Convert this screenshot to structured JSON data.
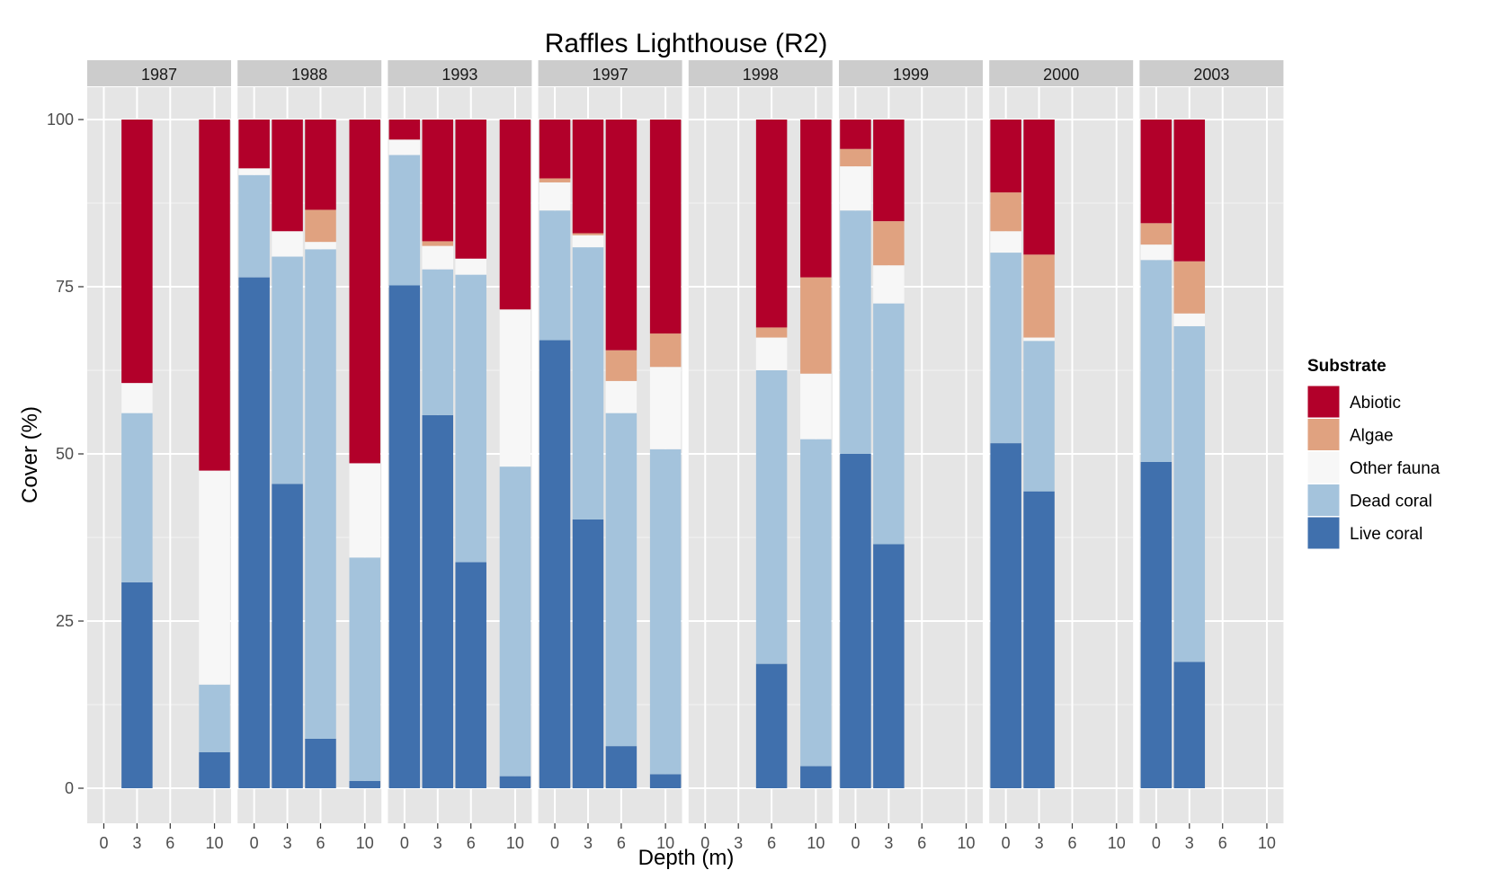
{
  "chart_data": {
    "type": "bar",
    "stacked": true,
    "faceted_by": "year",
    "title": "Raffles Lighthouse (R2)",
    "xlabel": "Depth (m)",
    "ylabel": "Cover (%)",
    "ylim": [
      0,
      100
    ],
    "y_ticks": [
      0,
      25,
      50,
      75,
      100
    ],
    "x_ticks": [
      0,
      3,
      6,
      10
    ],
    "x_range": [
      -1.5,
      11.5
    ],
    "grid": true,
    "legend": {
      "title": "Substrate",
      "placement": "right",
      "entries": [
        {
          "name": "Abiotic",
          "color": "#b2002a"
        },
        {
          "name": "Algae",
          "color": "#e0a280"
        },
        {
          "name": "Other fauna",
          "color": "#f7f7f7"
        },
        {
          "name": "Dead coral",
          "color": "#a4c3dc"
        },
        {
          "name": "Live coral",
          "color": "#4070ad"
        }
      ]
    },
    "stack_order": [
      "Live coral",
      "Dead coral",
      "Other fauna",
      "Algae",
      "Abiotic"
    ],
    "panels": [
      {
        "year": "1987",
        "bars": [
          {
            "depth": 3,
            "values": {
              "Live coral": 30.8,
              "Dead coral": 25.3,
              "Other fauna": 4.5,
              "Algae": 0,
              "Abiotic": 39.4
            }
          },
          {
            "depth": 10,
            "values": {
              "Live coral": 5.4,
              "Dead coral": 10.1,
              "Other fauna": 32.0,
              "Algae": 0,
              "Abiotic": 52.5
            }
          }
        ]
      },
      {
        "year": "1988",
        "bars": [
          {
            "depth": 0,
            "values": {
              "Live coral": 76.4,
              "Dead coral": 15.3,
              "Other fauna": 1.0,
              "Algae": 0,
              "Abiotic": 7.3
            }
          },
          {
            "depth": 3,
            "values": {
              "Live coral": 45.5,
              "Dead coral": 34.0,
              "Other fauna": 3.8,
              "Algae": 0,
              "Abiotic": 16.7
            }
          },
          {
            "depth": 6,
            "values": {
              "Live coral": 7.4,
              "Dead coral": 73.2,
              "Other fauna": 1.1,
              "Algae": 4.8,
              "Abiotic": 13.5
            }
          },
          {
            "depth": 10,
            "values": {
              "Live coral": 1.1,
              "Dead coral": 33.4,
              "Other fauna": 14.1,
              "Algae": 0,
              "Abiotic": 51.4
            }
          }
        ]
      },
      {
        "year": "1993",
        "bars": [
          {
            "depth": 0,
            "values": {
              "Live coral": 75.2,
              "Dead coral": 19.5,
              "Other fauna": 2.3,
              "Algae": 0,
              "Abiotic": 3.0
            }
          },
          {
            "depth": 3,
            "values": {
              "Live coral": 55.8,
              "Dead coral": 21.8,
              "Other fauna": 3.5,
              "Algae": 0.7,
              "Abiotic": 18.2
            }
          },
          {
            "depth": 6,
            "values": {
              "Live coral": 33.8,
              "Dead coral": 43.0,
              "Other fauna": 2.4,
              "Algae": 0,
              "Abiotic": 20.8
            }
          },
          {
            "depth": 10,
            "values": {
              "Live coral": 1.8,
              "Dead coral": 46.3,
              "Other fauna": 23.5,
              "Algae": 0,
              "Abiotic": 28.4
            }
          }
        ]
      },
      {
        "year": "1997",
        "bars": [
          {
            "depth": 0,
            "values": {
              "Live coral": 67.0,
              "Dead coral": 19.4,
              "Other fauna": 4.2,
              "Algae": 0.6,
              "Abiotic": 8.8
            }
          },
          {
            "depth": 3,
            "values": {
              "Live coral": 40.2,
              "Dead coral": 40.7,
              "Other fauna": 1.8,
              "Algae": 0.3,
              "Abiotic": 17.0
            }
          },
          {
            "depth": 6,
            "values": {
              "Live coral": 6.3,
              "Dead coral": 49.8,
              "Other fauna": 4.8,
              "Algae": 4.6,
              "Abiotic": 34.5
            }
          },
          {
            "depth": 10,
            "values": {
              "Live coral": 2.1,
              "Dead coral": 48.6,
              "Other fauna": 12.3,
              "Algae": 5.0,
              "Abiotic": 32.0
            }
          }
        ]
      },
      {
        "year": "1998",
        "bars": [
          {
            "depth": 6,
            "values": {
              "Live coral": 18.6,
              "Dead coral": 43.9,
              "Other fauna": 4.9,
              "Algae": 1.5,
              "Abiotic": 31.1
            }
          },
          {
            "depth": 10,
            "values": {
              "Live coral": 3.3,
              "Dead coral": 48.9,
              "Other fauna": 9.8,
              "Algae": 14.4,
              "Abiotic": 23.6
            }
          }
        ]
      },
      {
        "year": "1999",
        "bars": [
          {
            "depth": 0,
            "values": {
              "Live coral": 50.0,
              "Dead coral": 36.4,
              "Other fauna": 6.6,
              "Algae": 2.6,
              "Abiotic": 4.4
            }
          },
          {
            "depth": 3,
            "values": {
              "Live coral": 36.5,
              "Dead coral": 36.0,
              "Other fauna": 5.7,
              "Algae": 6.6,
              "Abiotic": 15.2
            }
          }
        ]
      },
      {
        "year": "2000",
        "bars": [
          {
            "depth": 0,
            "values": {
              "Live coral": 51.6,
              "Dead coral": 28.5,
              "Other fauna": 3.2,
              "Algae": 5.8,
              "Abiotic": 10.9
            }
          },
          {
            "depth": 3,
            "values": {
              "Live coral": 44.4,
              "Dead coral": 22.5,
              "Other fauna": 0.5,
              "Algae": 12.4,
              "Abiotic": 20.2
            }
          }
        ]
      },
      {
        "year": "2003",
        "bars": [
          {
            "depth": 0,
            "values": {
              "Live coral": 48.8,
              "Dead coral": 30.2,
              "Other fauna": 2.3,
              "Algae": 3.2,
              "Abiotic": 15.5
            }
          },
          {
            "depth": 3,
            "values": {
              "Live coral": 18.9,
              "Dead coral": 50.2,
              "Other fauna": 1.9,
              "Algae": 7.8,
              "Abiotic": 21.2
            }
          }
        ]
      }
    ]
  }
}
